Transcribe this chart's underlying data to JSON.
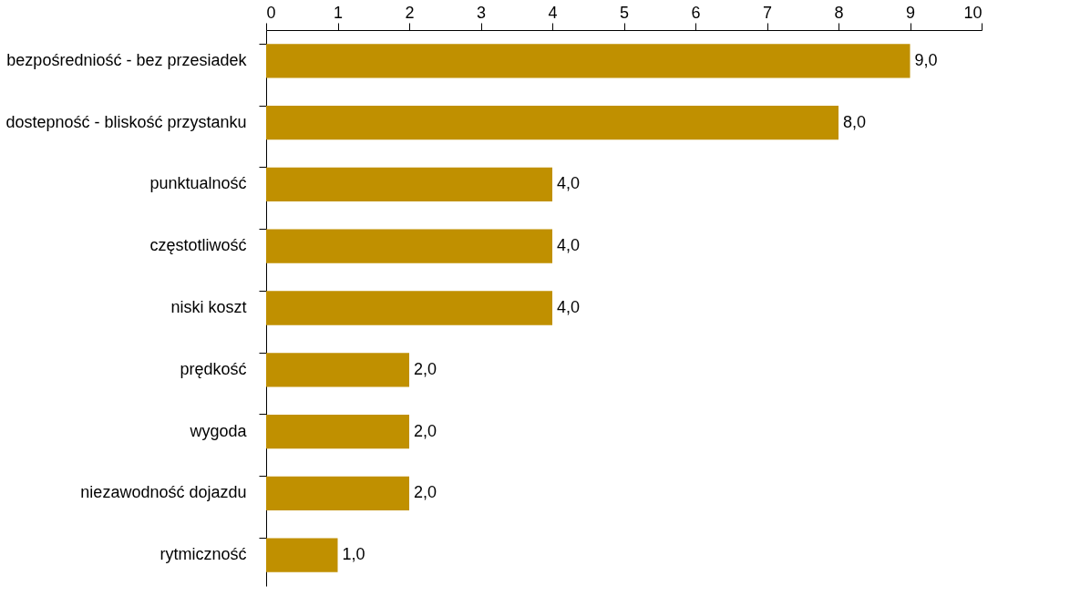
{
  "chart_data": {
    "type": "bar",
    "orientation": "horizontal",
    "categories": [
      "bezpośredniość - bez przesiadek",
      "dostepność - bliskość przystanku",
      "punktualność",
      "częstotliwość",
      "niski koszt",
      "prędkość",
      "wygoda",
      "niezawodność dojazdu",
      "rytmiczność"
    ],
    "values": [
      9,
      8,
      4,
      4,
      4,
      2,
      2,
      2,
      1
    ],
    "value_labels": [
      "9,0",
      "8,0",
      "4,0",
      "4,0",
      "4,0",
      "2,0",
      "2,0",
      "2,0",
      "1,0"
    ],
    "color": "#c09000",
    "xlim": [
      0,
      10
    ],
    "xticks": [
      0,
      1,
      2,
      3,
      4,
      5,
      6,
      7,
      8,
      9,
      10
    ],
    "grid": false
  }
}
